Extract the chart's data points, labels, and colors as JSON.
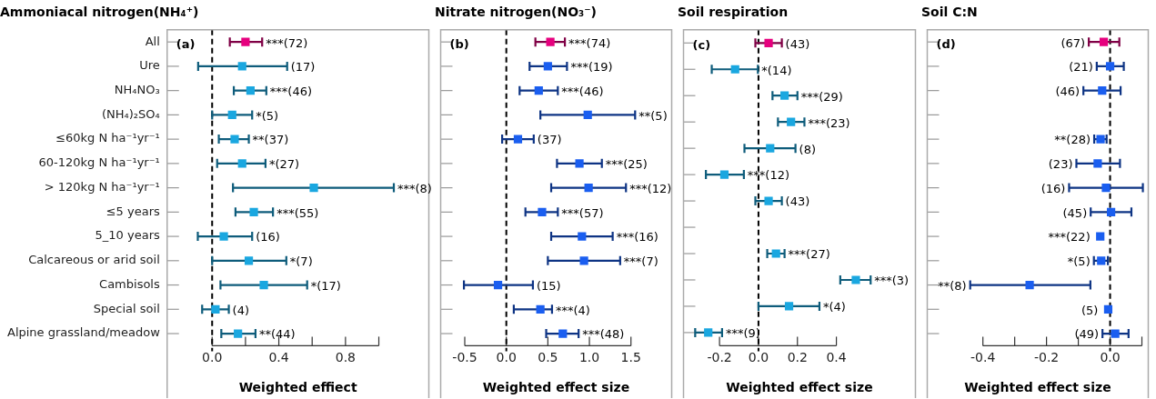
{
  "chart_data": [
    {
      "type": "scatter",
      "orientation": "horizontal",
      "title": "Ammoniacal nitrogen(NH₄⁺)",
      "xlabel": "Weighted effiect",
      "marker": "square",
      "grid": false,
      "legend": false,
      "categories": [
        "All",
        "Ure",
        "NH₄NO₃",
        "(NH₄)₂SO₄",
        "≤60kg N ha⁻¹yr⁻¹",
        "60-120kg N ha⁻¹yr⁻¹",
        "> 120kg N ha⁻¹yr⁻¹",
        "≤5 years",
        "5_10 years",
        "Calcareous or arid soil",
        "Cambisols",
        "Special soil",
        "Alpine grassland/meadow"
      ],
      "values": [
        0.2,
        0.18,
        0.23,
        0.12,
        0.135,
        0.18,
        0.61,
        0.25,
        0.07,
        0.22,
        0.31,
        0.02,
        0.155
      ],
      "errors": [
        [
          0.106,
          0.3
        ],
        [
          -0.084,
          0.45
        ],
        [
          0.13,
          0.325
        ],
        [
          0,
          0.24
        ],
        [
          0.04,
          0.22
        ],
        [
          0.03,
          0.32
        ],
        [
          0.125,
          1.09
        ],
        [
          0.14,
          0.365
        ],
        [
          -0.086,
          0.24
        ],
        [
          0,
          0.445
        ],
        [
          0.05,
          0.57
        ],
        [
          -0.06,
          0.1
        ],
        [
          0.055,
          0.26
        ]
      ],
      "colors": [
        "#e6007e",
        "#1aa7e0",
        "#1aa7e0",
        "#1aa7e0",
        "#1aa7e0",
        "#1aa7e0",
        "#1aa7e0",
        "#1aa7e0",
        "#1aa7e0",
        "#1aa7e0",
        "#1aa7e0",
        "#1aa7e0",
        "#1aa7e0"
      ],
      "annotations": [
        "(a)",
        "***(72)",
        "(17)",
        "***(46)",
        "*(5)",
        "**(37)",
        "*(27)",
        "***(8)",
        "***(55)",
        "(16)",
        "*(7)",
        "*(17)",
        "(4)",
        "**(44)"
      ],
      "xlim": [
        -0.27,
        1.3
      ],
      "xticks": [
        {
          "value": 0,
          "label": "0.0"
        },
        {
          "value": 0.2,
          "label": null
        },
        0.4,
        {
          "value": 0.6,
          "label": null
        },
        0.8,
        {
          "value": 1.0,
          "label": null
        }
      ],
      "ref_lines": [
        {
          "axis": "x",
          "value": 0,
          "line_style": "dashed",
          "color": "#000000"
        }
      ]
    },
    {
      "type": "scatter",
      "orientation": "horizontal",
      "title": "Nitrate nitrogen(NO₃⁻)",
      "xlabel": "Weighted effect size",
      "marker": "square",
      "grid": false,
      "legend": false,
      "tick_labels": "x",
      "categories": [
        null,
        null,
        null,
        null,
        null,
        null,
        null,
        null,
        null,
        null,
        null,
        null,
        null
      ],
      "values": [
        0.53,
        0.5,
        0.39,
        0.98,
        0.14,
        0.88,
        0.99,
        0.43,
        0.91,
        0.935,
        -0.1,
        0.41,
        0.68
      ],
      "errors": [
        [
          0.35,
          0.705
        ],
        [
          0.28,
          0.73
        ],
        [
          0.16,
          0.62
        ],
        [
          0.41,
          1.55
        ],
        [
          -0.05,
          0.33
        ],
        [
          0.61,
          1.15
        ],
        [
          0.54,
          1.44
        ],
        [
          0.23,
          0.62
        ],
        [
          0.54,
          1.28
        ],
        [
          0.5,
          1.37
        ],
        [
          -0.51,
          0.32
        ],
        [
          0.09,
          0.55
        ],
        [
          0.48,
          0.87
        ]
      ],
      "colors": [
        "#e6007e",
        "#1a5ef0",
        "#1a5ef0",
        "#1a5ef0",
        "#1a5ef0",
        "#1a5ef0",
        "#1a5ef0",
        "#1a5ef0",
        "#1a5ef0",
        "#1a5ef0",
        "#1a5ef0",
        "#1a5ef0",
        "#1a5ef0"
      ],
      "annotations": [
        "(b)",
        "***(74)",
        "***(19)",
        "***(46)",
        "**(5)",
        "(37)",
        "***(25)",
        "***(12)",
        "***(57)",
        "***(16)",
        "***(7)",
        "(15)",
        "***(4)",
        "***(48)"
      ],
      "xlim": [
        -0.79,
        1.99
      ],
      "xticks": [
        -0.5,
        {
          "value": 0,
          "label": "0.0"
        },
        0.5,
        {
          "value": 1,
          "label": "1.0"
        },
        1.5
      ],
      "ref_lines": [
        {
          "axis": "x",
          "value": 0,
          "line_style": "dashed",
          "color": "#000000"
        }
      ]
    },
    {
      "type": "scatter",
      "orientation": "horizontal",
      "title": "Soil respiration",
      "xlabel": "Weighted effect size",
      "marker": "square",
      "grid": false,
      "legend": false,
      "tick_labels": "x",
      "categories": [
        null,
        null,
        null,
        null,
        null,
        null,
        null,
        null,
        null,
        null,
        null,
        null
      ],
      "values": [
        0.052,
        -0.12,
        0.134,
        0.167,
        0.06,
        -0.175,
        0.052,
        null,
        0.09,
        0.5,
        0.157,
        -0.258
      ],
      "errors": [
        [
          -0.016,
          0.12
        ],
        [
          -0.24,
          -0.003
        ],
        [
          0.072,
          0.2
        ],
        [
          0.1,
          0.236
        ],
        [
          -0.072,
          0.19
        ],
        [
          -0.27,
          -0.075
        ],
        [
          -0.016,
          0.12
        ],
        null,
        [
          0.045,
          0.134
        ],
        [
          0.42,
          0.576
        ],
        [
          0,
          0.313
        ],
        [
          -0.325,
          -0.187
        ]
      ],
      "colors": [
        "#e6007e",
        "#1aa7e0",
        "#1aa7e0",
        "#1aa7e0",
        "#1aa7e0",
        "#1aa7e0",
        "#1aa7e0",
        "#1aa7e0",
        "#1aa7e0",
        "#1aa7e0",
        "#1aa7e0",
        "#1aa7e0"
      ],
      "annotations": [
        "(c)",
        "(43)",
        "*(14)",
        "***(29)",
        "***(23)",
        "(8)",
        "***(12)",
        "(43)",
        "***(27)",
        "***(3)",
        "*(4)",
        "***(9)"
      ],
      "xlim": [
        -0.385,
        0.806
      ],
      "xticks": [
        -0.2,
        {
          "value": 0,
          "label": "0.0"
        },
        0.2,
        0.4
      ],
      "ref_lines": [
        {
          "axis": "x",
          "value": 0,
          "line_style": "dashed",
          "color": "#000000"
        }
      ]
    },
    {
      "type": "scatter",
      "orientation": "horizontal",
      "title": "Soil C:N",
      "xlabel": "Weighted effect size",
      "marker": "square",
      "grid": false,
      "legend": false,
      "tick_labels": "x",
      "categories": [
        null,
        null,
        null,
        null,
        null,
        null,
        null,
        null,
        null,
        null,
        null,
        null,
        null
      ],
      "values": [
        -0.02,
        0,
        -0.025,
        null,
        -0.03,
        -0.039,
        -0.013,
        0.003,
        -0.031,
        -0.028,
        -0.253,
        -0.006,
        0.016
      ],
      "errors": [
        [
          -0.067,
          0.029
        ],
        [
          -0.042,
          0.043
        ],
        [
          -0.084,
          0.033
        ],
        null,
        [
          -0.05,
          -0.011
        ],
        [
          -0.106,
          0.031
        ],
        [
          -0.129,
          0.103
        ],
        [
          -0.061,
          0.067
        ],
        null,
        [
          -0.051,
          -0.007
        ],
        [
          -0.44,
          -0.062
        ],
        null,
        [
          -0.024,
          0.058
        ]
      ],
      "colors": [
        "#e6007e",
        "#1a5ef0",
        "#1a5ef0",
        "#1a5ef0",
        "#1a5ef0",
        "#1a5ef0",
        "#1a5ef0",
        "#1a5ef0",
        "#1a5ef0",
        "#1a5ef0",
        "#1a5ef0",
        "#1a5ef0",
        "#1a5ef0"
      ],
      "annotations": [
        "(d)",
        "(67)",
        "(21)",
        "(46)",
        "**(28)",
        "(23)",
        "(16)",
        "(45)",
        "***(22)",
        "*(5)",
        "**(8)",
        "(5)",
        "(49)"
      ],
      "xlim": [
        -0.575,
        0.12
      ],
      "xticks": [
        -0.4,
        {
          "value": -0.3,
          "label": null
        },
        -0.2,
        {
          "value": -0.1,
          "label": null
        },
        {
          "value": 0,
          "label": "0.0"
        },
        {
          "value": 0.1,
          "label": null
        }
      ],
      "ref_lines": [
        {
          "axis": "x",
          "value": 0,
          "line_style": "dashed",
          "color": "#000000"
        }
      ]
    }
  ]
}
